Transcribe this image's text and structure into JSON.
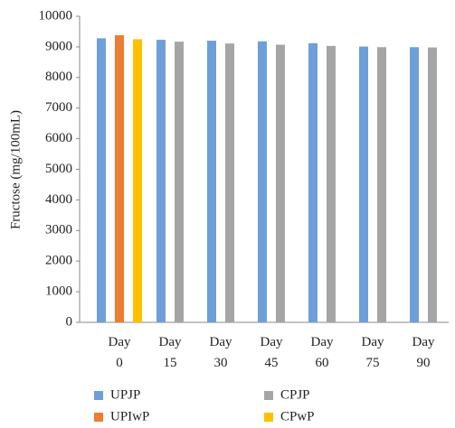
{
  "chart_data": {
    "type": "bar",
    "y_label": "Fructose (mg/100mL)",
    "categories": [
      "Day 0",
      "Day 15",
      "Day 30",
      "Day 45",
      "Day 60",
      "Day 75",
      "Day 90"
    ],
    "series": [
      {
        "name": "UPJP",
        "color": "#6f9fd8",
        "values": [
          9280,
          9230,
          9200,
          9180,
          9120,
          9010,
          8990
        ]
      },
      {
        "name": "UPIwP",
        "color": "#ed7d31",
        "values": [
          9380,
          null,
          null,
          null,
          null,
          null,
          null
        ]
      },
      {
        "name": "CPJP",
        "color": "#a5a5a5",
        "values": [
          null,
          9170,
          9110,
          9070,
          9030,
          8990,
          8980
        ]
      },
      {
        "name": "CPwP",
        "color": "#ffc000",
        "values": [
          9250,
          null,
          null,
          null,
          null,
          null,
          null
        ]
      }
    ],
    "ylim": [
      0,
      10000
    ],
    "yticks": [
      0,
      1000,
      2000,
      3000,
      4000,
      5000,
      6000,
      7000,
      8000,
      9000,
      10000
    ],
    "grid": false
  }
}
